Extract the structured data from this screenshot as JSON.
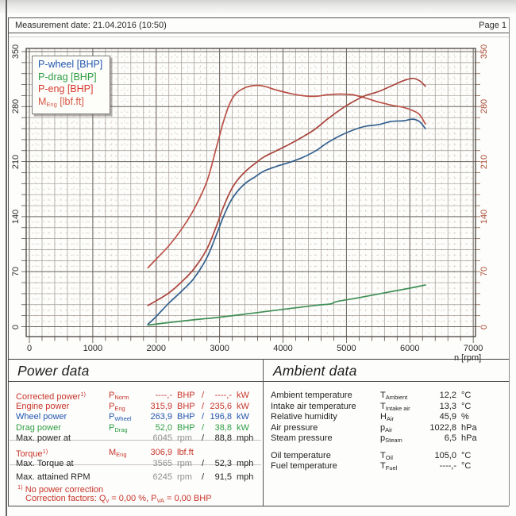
{
  "header": {
    "measurement_date": "Measurement date: 21.04.2016 (10:50)",
    "page": "Page 1"
  },
  "chart": {
    "x_axis_label": "n [rpm]",
    "left_axis_color": "#2a2a2a",
    "right_axis_color": "#a84a32",
    "legend": [
      {
        "label": "P-wheel [BHP]",
        "color": "#2356b0"
      },
      {
        "label": "P-drag [BHP]",
        "color": "#2f9e44"
      },
      {
        "label": "P-eng [BHP]",
        "color": "#d63a2f"
      },
      {
        "pre": "M",
        "sub": "Eng",
        "post": " [lbf.ft]",
        "color": "#d65844"
      }
    ]
  },
  "chart_data": {
    "type": "line",
    "title": "",
    "xlabel": "n [rpm]",
    "ylabel": "",
    "xlim": [
      0,
      7000
    ],
    "ylim": [
      0,
      350
    ],
    "x_ticks": [
      0,
      1000,
      2000,
      3000,
      4000,
      5000,
      6000,
      7000
    ],
    "y_ticks": [
      0,
      70,
      140,
      210,
      280,
      350
    ],
    "grid": true,
    "legend_position": "top-left",
    "series": [
      {
        "name": "P-wheel [BHP]",
        "unit": "BHP",
        "color": "#33608e",
        "points": [
          [
            1870,
            3
          ],
          [
            2000,
            13
          ],
          [
            2200,
            30
          ],
          [
            2400,
            45
          ],
          [
            2600,
            62
          ],
          [
            2800,
            88
          ],
          [
            2950,
            117
          ],
          [
            3050,
            138
          ],
          [
            3150,
            156
          ],
          [
            3250,
            169
          ],
          [
            3400,
            182
          ],
          [
            3565,
            191
          ],
          [
            3700,
            198
          ],
          [
            3900,
            204
          ],
          [
            4100,
            209
          ],
          [
            4300,
            215
          ],
          [
            4500,
            223
          ],
          [
            4700,
            234
          ],
          [
            4900,
            243
          ],
          [
            5100,
            250
          ],
          [
            5300,
            255
          ],
          [
            5500,
            257
          ],
          [
            5700,
            261
          ],
          [
            5900,
            262
          ],
          [
            6045,
            264
          ],
          [
            6150,
            261
          ],
          [
            6245,
            252
          ]
        ]
      },
      {
        "name": "P-drag [BHP]",
        "unit": "BHP",
        "color": "#3f8f55",
        "points": [
          [
            1870,
            2
          ],
          [
            2500,
            8
          ],
          [
            3000,
            12
          ],
          [
            3500,
            17
          ],
          [
            4000,
            22
          ],
          [
            4500,
            27
          ],
          [
            4750,
            29
          ],
          [
            4850,
            32
          ],
          [
            5200,
            37
          ],
          [
            5600,
            43
          ],
          [
            6000,
            49
          ],
          [
            6245,
            53
          ]
        ]
      },
      {
        "name": "P-eng [BHP]",
        "unit": "BHP",
        "color": "#a8443c",
        "points": [
          [
            1870,
            27
          ],
          [
            2000,
            33
          ],
          [
            2200,
            43
          ],
          [
            2400,
            57
          ],
          [
            2600,
            74
          ],
          [
            2800,
            99
          ],
          [
            2950,
            128
          ],
          [
            3050,
            150
          ],
          [
            3150,
            169
          ],
          [
            3250,
            183
          ],
          [
            3400,
            197
          ],
          [
            3565,
            208
          ],
          [
            3700,
            216
          ],
          [
            3900,
            224
          ],
          [
            4100,
            232
          ],
          [
            4300,
            241
          ],
          [
            4500,
            251
          ],
          [
            4700,
            264
          ],
          [
            4900,
            276
          ],
          [
            5100,
            286
          ],
          [
            5300,
            294
          ],
          [
            5500,
            299
          ],
          [
            5700,
            306
          ],
          [
            5900,
            313
          ],
          [
            6045,
            316
          ],
          [
            6150,
            313
          ],
          [
            6245,
            306
          ]
        ]
      },
      {
        "name": "MEng [lbf.ft]",
        "unit": "lbf.ft",
        "color": "#bb5147",
        "points": [
          [
            1870,
            75
          ],
          [
            2000,
            86
          ],
          [
            2200,
            103
          ],
          [
            2400,
            124
          ],
          [
            2600,
            150
          ],
          [
            2800,
            185
          ],
          [
            2950,
            228
          ],
          [
            3050,
            258
          ],
          [
            3150,
            282
          ],
          [
            3250,
            296
          ],
          [
            3400,
            304
          ],
          [
            3565,
            307
          ],
          [
            3700,
            306
          ],
          [
            3900,
            301
          ],
          [
            4100,
            297
          ],
          [
            4300,
            294
          ],
          [
            4500,
            293
          ],
          [
            4700,
            295
          ],
          [
            4900,
            296
          ],
          [
            5100,
            295
          ],
          [
            5300,
            291
          ],
          [
            5500,
            286
          ],
          [
            5700,
            282
          ],
          [
            5900,
            279
          ],
          [
            6045,
            275
          ],
          [
            6150,
            270
          ],
          [
            6245,
            258
          ]
        ]
      }
    ]
  },
  "power_data": {
    "title": "Power data",
    "rows": [
      {
        "label": "Corrected power",
        "note": "1)",
        "sym": "P",
        "sub": "Norm",
        "v1": "----,-",
        "u1": "BHP",
        "slash": "/",
        "v2": "----,-",
        "u2": "kW",
        "color": "red"
      },
      {
        "label": "Engine power",
        "sym": "P",
        "sub": "Eng",
        "v1": "315,9",
        "u1": "BHP",
        "slash": "/",
        "v2": "235,6",
        "u2": "kW",
        "color": "red"
      },
      {
        "label": "Wheel power",
        "sym": "P",
        "sub": "Wheel",
        "v1": "263,9",
        "u1": "BHP",
        "slash": "/",
        "v2": "196,8",
        "u2": "kW",
        "color": "blue"
      },
      {
        "label": "Drag power",
        "sym": "P",
        "sub": "Drag",
        "v1": "52,0",
        "u1": "BHP",
        "slash": "/",
        "v2": "38,8",
        "u2": "kW",
        "color": "green"
      },
      {
        "label": "Max. power at",
        "v1": "6045",
        "u1": "rpm",
        "slash": "/",
        "v2": "88,8",
        "u2": "mph",
        "color": "plain"
      },
      {
        "label": "Torque",
        "note": "1)",
        "sym": "M",
        "sub": "Eng",
        "v1": "306,9",
        "u1": "lbf.ft",
        "color": "red"
      },
      {
        "label": "Max. Torque at",
        "v1": "3565",
        "u1": "rpm",
        "slash": "/",
        "v2": "52,3",
        "u2": "mph",
        "color": "plain"
      },
      {
        "label": "Max. attained RPM",
        "v1": "6245",
        "u1": "rpm",
        "slash": "/",
        "v2": "91,5",
        "u2": "mph",
        "color": "plain"
      }
    ],
    "footnote_marker": "1)",
    "footnote1": "No power correction",
    "footnote2": {
      "a": "Correction factors: Q",
      "a_sub": "v",
      "b": " =  0,00 %, P",
      "b_sub": "VA",
      "c": " =  0,00 BHP"
    }
  },
  "ambient_data": {
    "title": "Ambient data",
    "rows": [
      {
        "label": "Ambient temperature",
        "sym": "T",
        "sub": "Ambient",
        "value": "12,2",
        "unit": "°C"
      },
      {
        "label": "Intake air temperature",
        "sym": "T",
        "sub": "Intake air",
        "value": "13,3",
        "unit": "°C"
      },
      {
        "label": "Relative humidity",
        "sym": "H",
        "sub": "Air",
        "value": "45,9",
        "unit": "%"
      },
      {
        "label": "Air pressure",
        "sym": "p",
        "sub": "Air",
        "value": "1022,8",
        "unit": "hPa"
      },
      {
        "label": "Steam pressure",
        "sym": "p",
        "sub": "Steam",
        "value": "6,5",
        "unit": "hPa"
      },
      {
        "label": "Oil temperature",
        "sym": "T",
        "sub": "Oil",
        "value": "105,0",
        "unit": "°C"
      },
      {
        "label": "Fuel temperature",
        "sym": "T",
        "sub": "Fuel",
        "value": "----,-",
        "unit": "°C"
      }
    ]
  }
}
